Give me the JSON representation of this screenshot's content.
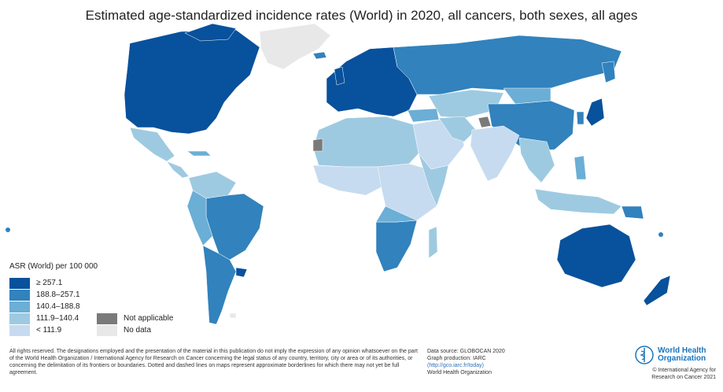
{
  "title": "Estimated age-standardized incidence rates (World) in 2020, all cancers, both sexes, all ages",
  "legend": {
    "title": "ASR (World) per 100 000",
    "classes": [
      {
        "label": "≥ 257.1",
        "color": "#08519c"
      },
      {
        "label": "188.8–257.1",
        "color": "#3182bd"
      },
      {
        "label": "140.4–188.8",
        "color": "#6baed6"
      },
      {
        "label": "111.9–140.4",
        "color": "#9ecae1"
      },
      {
        "label": "< 111.9",
        "color": "#c6dbef"
      }
    ],
    "extra": [
      {
        "label": "Not applicable",
        "color": "#7a7a7a"
      },
      {
        "label": "No data",
        "color": "#e8e8e8"
      }
    ]
  },
  "footer": {
    "disclaimer": "All rights reserved. The designations employed and the presentation of the material in this publication do not imply the expression of any opinion whatsoever on the part of the World Health Organization / International Agency for Research on Cancer concerning the legal status of any country, territory, city or area or of its authorities, or concerning the delimitation of its frontiers or boundaries. Dotted and dashed lines on maps represent approximate borderlines for which there may not yet be full agreement.",
    "source_line1": "Data source: GLOBOCAN 2020",
    "source_line2": "Graph production: IARC",
    "source_link": "(http://gco.iarc.fr/today)",
    "source_line4": "World Health Organization",
    "who_line1": "World Health",
    "who_line2": "Organization",
    "copyright1": "© International Agency for",
    "copyright2": "Research on Cancer 2021"
  }
}
